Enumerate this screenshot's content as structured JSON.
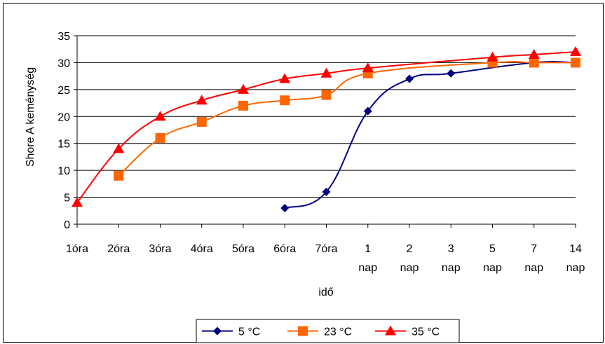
{
  "chart_data": {
    "type": "line",
    "title": "",
    "xlabel": "idő",
    "ylabel": "Shore A keménység",
    "ylim": [
      0,
      35
    ],
    "yticks": [
      0,
      5,
      10,
      15,
      20,
      25,
      30,
      35
    ],
    "categories": [
      [
        "1óra"
      ],
      [
        "2óra"
      ],
      [
        "3óra"
      ],
      [
        "4óra"
      ],
      [
        "5óra"
      ],
      [
        "6óra"
      ],
      [
        "7óra"
      ],
      [
        "1",
        "nap"
      ],
      [
        "2",
        "nap"
      ],
      [
        "3",
        "nap"
      ],
      [
        "5",
        "nap"
      ],
      [
        "7",
        "nap"
      ],
      [
        "14",
        "nap"
      ]
    ],
    "grid": "horizontal",
    "legend_position": "bottom",
    "series": [
      {
        "name": "5 °C",
        "color": "#000080",
        "marker": "diamond",
        "values": [
          null,
          null,
          null,
          null,
          null,
          3,
          6,
          21,
          27,
          28,
          null,
          30,
          30
        ]
      },
      {
        "name": "23 °C",
        "color": "#FF6600",
        "marker": "square",
        "values": [
          null,
          9,
          16,
          19,
          22,
          23,
          24,
          28,
          null,
          null,
          30,
          30,
          30
        ]
      },
      {
        "name": "35 °C",
        "color": "#FF0000",
        "marker": "triangle",
        "values": [
          4,
          14,
          20,
          23,
          25,
          27,
          28,
          29,
          null,
          null,
          31,
          31.5,
          32
        ]
      }
    ]
  }
}
